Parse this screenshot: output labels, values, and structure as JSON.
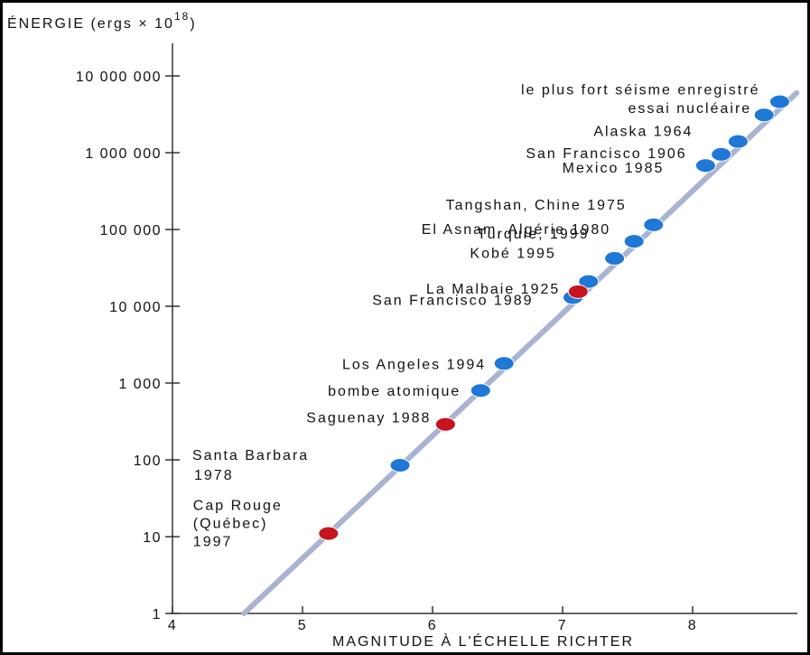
{
  "chart_data": {
    "type": "scatter",
    "title": "",
    "ylabel_main": "ÉNERGIE (ergs × 10",
    "ylabel_exp": "18",
    "ylabel_close": ")",
    "xlabel": "MAGNITUDE À L'ÉCHELLE RICHTER",
    "y_scale": "log",
    "xlim": [
      4,
      8.9
    ],
    "ylim": [
      1,
      30000000
    ],
    "x_ticks": [
      4,
      5,
      6,
      7,
      8
    ],
    "x_tick_labels": [
      "4",
      "5",
      "6",
      "7",
      "8"
    ],
    "y_ticks": [
      1,
      10,
      100,
      1000,
      10000,
      100000,
      1000000,
      10000000
    ],
    "y_tick_labels": [
      "1",
      "10",
      "100",
      "1 000",
      "10 000",
      "100 000",
      "1 000 000",
      "10 000 000"
    ],
    "trend_line": {
      "x": [
        4.55,
        8.8
      ],
      "y": [
        1,
        6000000
      ]
    },
    "series": [
      {
        "color": "#1f77d6",
        "points": [
          {
            "x": 5.75,
            "y": 85,
            "label": [
              "Santa Barbara",
              "1978"
            ]
          },
          {
            "x": 6.37,
            "y": 800,
            "label": [
              "bombe atomique"
            ]
          },
          {
            "x": 6.55,
            "y": 1800,
            "label": [
              "Los Angeles 1994"
            ]
          },
          {
            "x": 7.08,
            "y": 13000,
            "label": [
              "San Francisco 1989"
            ]
          },
          {
            "x": 7.2,
            "y": 21000,
            "label": [
              "Kobé 1995"
            ]
          },
          {
            "x": 7.4,
            "y": 42000,
            "label": [
              "Turquie, 1999"
            ]
          },
          {
            "x": 7.55,
            "y": 70000,
            "label": [
              "El Asnam, Algérie 1980"
            ]
          },
          {
            "x": 7.7,
            "y": 115000,
            "label": [
              "Tangshan, Chine 1975"
            ]
          },
          {
            "x": 8.1,
            "y": 680000,
            "label": [
              "Mexico 1985"
            ]
          },
          {
            "x": 8.22,
            "y": 950000,
            "label": [
              "San Francisco 1906"
            ]
          },
          {
            "x": 8.35,
            "y": 1400000,
            "label": [
              "Alaska 1964"
            ]
          },
          {
            "x": 8.55,
            "y": 3100000,
            "label": [
              "essai nucléaire"
            ]
          },
          {
            "x": 8.67,
            "y": 4600000,
            "label": [
              "le plus fort séisme enregistré"
            ]
          }
        ]
      },
      {
        "color": "#c8141e",
        "points": [
          {
            "x": 5.2,
            "y": 11,
            "label": [
              "Cap Rouge",
              "(Québec)",
              "1997"
            ]
          },
          {
            "x": 6.1,
            "y": 290,
            "label": [
              "Saguenay 1988"
            ]
          },
          {
            "x": 7.12,
            "y": 15500,
            "label": [
              "La Malbaie 1925"
            ]
          }
        ]
      }
    ],
    "grid": false,
    "legend": "none"
  }
}
